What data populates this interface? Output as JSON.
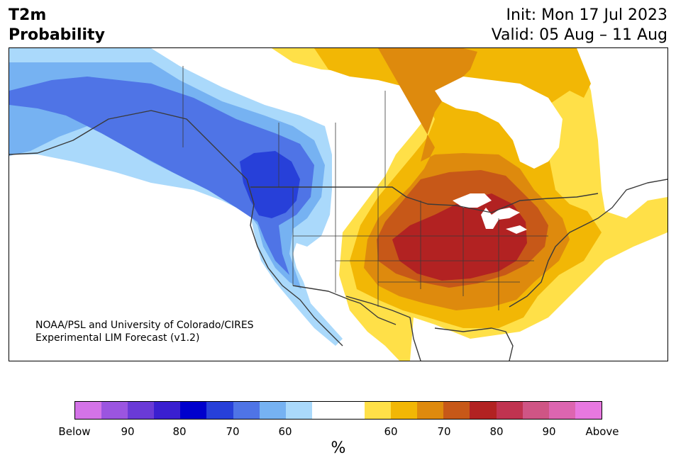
{
  "title": {
    "variable": "T2m",
    "subtitle": "Probability",
    "init": "Init: Mon 17 Jul 2023",
    "valid": "Valid: 05 Aug – 11 Aug"
  },
  "credit": {
    "line1": "NOAA/PSL and University of Colorado/CIRES",
    "line2": "Experimental LIM Forecast (v1.2)"
  },
  "colorbar": {
    "unit": "%",
    "colors": [
      "#d473e8",
      "#9b55e0",
      "#6a3ad6",
      "#3a1fd0",
      "#0000cd",
      "#2740d9",
      "#4f74e6",
      "#76b2f2",
      "#aad9fb",
      "#ffffff",
      "#ffffff",
      "#ffe048",
      "#f2b705",
      "#de8a0d",
      "#c75818",
      "#b22222",
      "#c03350",
      "#cf5585",
      "#dd65b0",
      "#e878e0"
    ],
    "ticks": [
      "Below",
      "90",
      "80",
      "70",
      "60",
      "60",
      "70",
      "80",
      "90",
      "Above"
    ]
  },
  "palette": {
    "cold60": "#aad9fb",
    "cold65": "#76b2f2",
    "cold70": "#4f74e6",
    "cold75": "#2740d9",
    "warm55": "#ffe048",
    "warm60": "#f2b705",
    "warm65": "#de8a0d",
    "warm70": "#c75818",
    "warm75": "#b22222",
    "lines": "#3a3a3a"
  }
}
